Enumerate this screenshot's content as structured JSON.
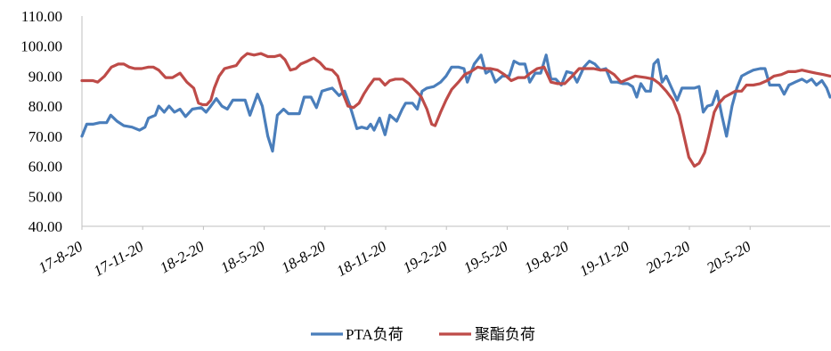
{
  "chart_data": {
    "type": "line",
    "title": "",
    "xlabel": "",
    "ylabel": "",
    "ylim": [
      40,
      110
    ],
    "y_ticks": [
      "110.00",
      "100.00",
      "90.00",
      "80.00",
      "70.00",
      "60.00",
      "50.00",
      "40.00"
    ],
    "x_ticks": [
      "17-8-20",
      "17-11-20",
      "18-2-20",
      "18-5-20",
      "18-8-20",
      "18-11-20",
      "19-2-20",
      "19-5-20",
      "19-8-20",
      "19-11-20",
      "20-2-20",
      "20-5-20"
    ],
    "x_range": [
      "2017-08-20",
      "2020-08-15"
    ],
    "grid": false,
    "legend_position": "bottom",
    "colors": {
      "PTA负荷": "#4a7ebb",
      "聚酯负荷": "#be4b48"
    },
    "series": [
      {
        "name": "PTA负荷",
        "color": "#4a7ebb",
        "points": [
          [
            "2017-08-20",
            70
          ],
          [
            "2017-08-27",
            74
          ],
          [
            "2017-09-05",
            74
          ],
          [
            "2017-09-15",
            74.5
          ],
          [
            "2017-09-25",
            74.5
          ],
          [
            "2017-10-01",
            77
          ],
          [
            "2017-10-10",
            75
          ],
          [
            "2017-10-20",
            73.5
          ],
          [
            "2017-11-01",
            73
          ],
          [
            "2017-11-12",
            72
          ],
          [
            "2017-11-20",
            73
          ],
          [
            "2017-11-25",
            76
          ],
          [
            "2017-12-05",
            77
          ],
          [
            "2017-12-10",
            80
          ],
          [
            "2017-12-18",
            78
          ],
          [
            "2017-12-25",
            80
          ],
          [
            "2018-01-02",
            78
          ],
          [
            "2018-01-10",
            79
          ],
          [
            "2018-01-18",
            76.5
          ],
          [
            "2018-01-28",
            79
          ],
          [
            "2018-02-10",
            79.5
          ],
          [
            "2018-02-17",
            78
          ],
          [
            "2018-02-24",
            80
          ],
          [
            "2018-03-04",
            82.5
          ],
          [
            "2018-03-12",
            80
          ],
          [
            "2018-03-20",
            79
          ],
          [
            "2018-03-28",
            82
          ],
          [
            "2018-04-05",
            82
          ],
          [
            "2018-04-15",
            82
          ],
          [
            "2018-04-22",
            77
          ],
          [
            "2018-05-03",
            84
          ],
          [
            "2018-05-10",
            80
          ],
          [
            "2018-05-18",
            70
          ],
          [
            "2018-05-25",
            65
          ],
          [
            "2018-06-01",
            77
          ],
          [
            "2018-06-10",
            79
          ],
          [
            "2018-06-17",
            77.5
          ],
          [
            "2018-06-25",
            77.5
          ],
          [
            "2018-07-03",
            77.5
          ],
          [
            "2018-07-10",
            83
          ],
          [
            "2018-07-20",
            83
          ],
          [
            "2018-07-28",
            79.5
          ],
          [
            "2018-08-05",
            85
          ],
          [
            "2018-08-12",
            85.5
          ],
          [
            "2018-08-20",
            86
          ],
          [
            "2018-08-30",
            83.5
          ],
          [
            "2018-09-07",
            85
          ],
          [
            "2018-09-15",
            80
          ],
          [
            "2018-09-25",
            72.5
          ],
          [
            "2018-10-02",
            73
          ],
          [
            "2018-10-10",
            72.5
          ],
          [
            "2018-10-15",
            74
          ],
          [
            "2018-10-20",
            72
          ],
          [
            "2018-10-28",
            76
          ],
          [
            "2018-11-05",
            70.5
          ],
          [
            "2018-11-12",
            77
          ],
          [
            "2018-11-22",
            75
          ],
          [
            "2018-11-30",
            79
          ],
          [
            "2018-12-05",
            81
          ],
          [
            "2018-12-15",
            81
          ],
          [
            "2018-12-22",
            79
          ],
          [
            "2018-12-29",
            85
          ],
          [
            "2019-01-05",
            86
          ],
          [
            "2019-01-15",
            86.5
          ],
          [
            "2019-01-25",
            88
          ],
          [
            "2019-02-02",
            90
          ],
          [
            "2019-02-10",
            93
          ],
          [
            "2019-02-20",
            93
          ],
          [
            "2019-02-28",
            92.5
          ],
          [
            "2019-03-05",
            88
          ],
          [
            "2019-03-15",
            94
          ],
          [
            "2019-03-25",
            97
          ],
          [
            "2019-04-01",
            91
          ],
          [
            "2019-04-08",
            92
          ],
          [
            "2019-04-15",
            88
          ],
          [
            "2019-04-25",
            90
          ],
          [
            "2019-05-05",
            90
          ],
          [
            "2019-05-12",
            95
          ],
          [
            "2019-05-20",
            94
          ],
          [
            "2019-05-28",
            94
          ],
          [
            "2019-06-04",
            88
          ],
          [
            "2019-06-12",
            91
          ],
          [
            "2019-06-20",
            91
          ],
          [
            "2019-06-28",
            97
          ],
          [
            "2019-07-05",
            89
          ],
          [
            "2019-07-12",
            89
          ],
          [
            "2019-07-20",
            87
          ],
          [
            "2019-07-28",
            91.5
          ],
          [
            "2019-08-05",
            91
          ],
          [
            "2019-08-12",
            88
          ],
          [
            "2019-08-22",
            93
          ],
          [
            "2019-08-30",
            95
          ],
          [
            "2019-09-07",
            94
          ],
          [
            "2019-09-15",
            92
          ],
          [
            "2019-09-23",
            92.5
          ],
          [
            "2019-10-01",
            88
          ],
          [
            "2019-10-10",
            88
          ],
          [
            "2019-10-18",
            87.5
          ],
          [
            "2019-10-25",
            87.5
          ],
          [
            "2019-11-01",
            86.5
          ],
          [
            "2019-11-07",
            83
          ],
          [
            "2019-11-13",
            87.5
          ],
          [
            "2019-11-20",
            85
          ],
          [
            "2019-11-27",
            85
          ],
          [
            "2019-12-02",
            94
          ],
          [
            "2019-12-08",
            95.5
          ],
          [
            "2019-12-14",
            88
          ],
          [
            "2019-12-20",
            90
          ],
          [
            "2019-12-28",
            86
          ],
          [
            "2020-01-05",
            82
          ],
          [
            "2020-01-12",
            86
          ],
          [
            "2020-01-20",
            86
          ],
          [
            "2020-01-30",
            86
          ],
          [
            "2020-02-06",
            86.5
          ],
          [
            "2020-02-12",
            78
          ],
          [
            "2020-02-18",
            80
          ],
          [
            "2020-02-25",
            80.5
          ],
          [
            "2020-03-03",
            85
          ],
          [
            "2020-03-10",
            77
          ],
          [
            "2020-03-17",
            70
          ],
          [
            "2020-03-25",
            80
          ],
          [
            "2020-04-01",
            86
          ],
          [
            "2020-04-08",
            90
          ],
          [
            "2020-04-16",
            91
          ],
          [
            "2020-04-25",
            92
          ],
          [
            "2020-05-05",
            92.5
          ],
          [
            "2020-05-12",
            92.5
          ],
          [
            "2020-05-19",
            87
          ],
          [
            "2020-05-26",
            87
          ],
          [
            "2020-06-02",
            87
          ],
          [
            "2020-06-09",
            84
          ],
          [
            "2020-06-16",
            87
          ],
          [
            "2020-06-25",
            88
          ],
          [
            "2020-07-05",
            89
          ],
          [
            "2020-07-12",
            88
          ],
          [
            "2020-07-19",
            89
          ],
          [
            "2020-07-26",
            87
          ],
          [
            "2020-08-03",
            88.5
          ],
          [
            "2020-08-10",
            86
          ],
          [
            "2020-08-15",
            83
          ]
        ]
      },
      {
        "name": "聚酯负荷",
        "color": "#be4b48",
        "points": [
          [
            "2017-08-20",
            88.5
          ],
          [
            "2017-09-05",
            88.5
          ],
          [
            "2017-09-12",
            88
          ],
          [
            "2017-09-22",
            90
          ],
          [
            "2017-10-02",
            93
          ],
          [
            "2017-10-12",
            94
          ],
          [
            "2017-10-20",
            94
          ],
          [
            "2017-10-28",
            93
          ],
          [
            "2017-11-05",
            92.5
          ],
          [
            "2017-11-15",
            92.5
          ],
          [
            "2017-11-25",
            93
          ],
          [
            "2017-12-02",
            93
          ],
          [
            "2017-12-10",
            92
          ],
          [
            "2017-12-20",
            89.5
          ],
          [
            "2017-12-30",
            89.5
          ],
          [
            "2018-01-10",
            91
          ],
          [
            "2018-01-20",
            88
          ],
          [
            "2018-01-30",
            86
          ],
          [
            "2018-02-06",
            81
          ],
          [
            "2018-02-12",
            80.5
          ],
          [
            "2018-02-18",
            80.5
          ],
          [
            "2018-02-24",
            82
          ],
          [
            "2018-03-01",
            86
          ],
          [
            "2018-03-08",
            90
          ],
          [
            "2018-03-16",
            92.5
          ],
          [
            "2018-03-24",
            93
          ],
          [
            "2018-04-02",
            93.5
          ],
          [
            "2018-04-10",
            96
          ],
          [
            "2018-04-18",
            97.5
          ],
          [
            "2018-04-28",
            97
          ],
          [
            "2018-05-08",
            97.5
          ],
          [
            "2018-05-18",
            96.5
          ],
          [
            "2018-05-28",
            96.5
          ],
          [
            "2018-06-05",
            97
          ],
          [
            "2018-06-12",
            95.5
          ],
          [
            "2018-06-20",
            92
          ],
          [
            "2018-06-28",
            92.5
          ],
          [
            "2018-07-05",
            94
          ],
          [
            "2018-07-15",
            95
          ],
          [
            "2018-07-24",
            96
          ],
          [
            "2018-08-02",
            94.5
          ],
          [
            "2018-08-10",
            92.5
          ],
          [
            "2018-08-20",
            92
          ],
          [
            "2018-08-28",
            90
          ],
          [
            "2018-09-05",
            84
          ],
          [
            "2018-09-12",
            80
          ],
          [
            "2018-09-20",
            79.5
          ],
          [
            "2018-09-28",
            81
          ],
          [
            "2018-10-05",
            84
          ],
          [
            "2018-10-12",
            86.5
          ],
          [
            "2018-10-20",
            89
          ],
          [
            "2018-10-28",
            89
          ],
          [
            "2018-11-05",
            87
          ],
          [
            "2018-11-12",
            88.5
          ],
          [
            "2018-11-20",
            89
          ],
          [
            "2018-12-01",
            89
          ],
          [
            "2018-12-10",
            87.5
          ],
          [
            "2018-12-20",
            85
          ],
          [
            "2018-12-28",
            83
          ],
          [
            "2019-01-05",
            79
          ],
          [
            "2019-01-12",
            74
          ],
          [
            "2019-01-17",
            73.5
          ],
          [
            "2019-01-25",
            78
          ],
          [
            "2019-02-02",
            82
          ],
          [
            "2019-02-10",
            85.5
          ],
          [
            "2019-02-20",
            88
          ],
          [
            "2019-03-01",
            90.5
          ],
          [
            "2019-03-10",
            91.5
          ],
          [
            "2019-03-20",
            93
          ],
          [
            "2019-03-30",
            92.5
          ],
          [
            "2019-04-08",
            92.5
          ],
          [
            "2019-04-18",
            92
          ],
          [
            "2019-04-28",
            90.5
          ],
          [
            "2019-05-08",
            88.5
          ],
          [
            "2019-05-18",
            89.5
          ],
          [
            "2019-05-28",
            89.5
          ],
          [
            "2019-06-05",
            91
          ],
          [
            "2019-06-15",
            92.5
          ],
          [
            "2019-06-25",
            93
          ],
          [
            "2019-07-05",
            88
          ],
          [
            "2019-07-15",
            87.5
          ],
          [
            "2019-07-25",
            87.5
          ],
          [
            "2019-08-05",
            90
          ],
          [
            "2019-08-15",
            92.5
          ],
          [
            "2019-08-25",
            92.5
          ],
          [
            "2019-09-05",
            92.5
          ],
          [
            "2019-09-15",
            92
          ],
          [
            "2019-09-25",
            92
          ],
          [
            "2019-10-05",
            90.5
          ],
          [
            "2019-10-15",
            88
          ],
          [
            "2019-10-25",
            89
          ],
          [
            "2019-11-05",
            90
          ],
          [
            "2019-11-20",
            89.5
          ],
          [
            "2019-12-01",
            89
          ],
          [
            "2019-12-10",
            87.5
          ],
          [
            "2019-12-20",
            85
          ],
          [
            "2019-12-30",
            82
          ],
          [
            "2020-01-08",
            77
          ],
          [
            "2020-01-15",
            70
          ],
          [
            "2020-01-22",
            63
          ],
          [
            "2020-01-30",
            60
          ],
          [
            "2020-02-06",
            61
          ],
          [
            "2020-02-14",
            64.5
          ],
          [
            "2020-02-20",
            70
          ],
          [
            "2020-02-28",
            78
          ],
          [
            "2020-03-06",
            81
          ],
          [
            "2020-03-14",
            83
          ],
          [
            "2020-03-22",
            84
          ],
          [
            "2020-03-30",
            85
          ],
          [
            "2020-04-08",
            85
          ],
          [
            "2020-04-15",
            87
          ],
          [
            "2020-04-25",
            87
          ],
          [
            "2020-05-05",
            87.5
          ],
          [
            "2020-05-15",
            88.5
          ],
          [
            "2020-05-25",
            90
          ],
          [
            "2020-06-05",
            90.5
          ],
          [
            "2020-06-15",
            91.5
          ],
          [
            "2020-06-25",
            91.5
          ],
          [
            "2020-07-05",
            92
          ],
          [
            "2020-07-15",
            91.5
          ],
          [
            "2020-07-25",
            91
          ],
          [
            "2020-08-05",
            90.5
          ],
          [
            "2020-08-15",
            90
          ]
        ]
      }
    ]
  }
}
